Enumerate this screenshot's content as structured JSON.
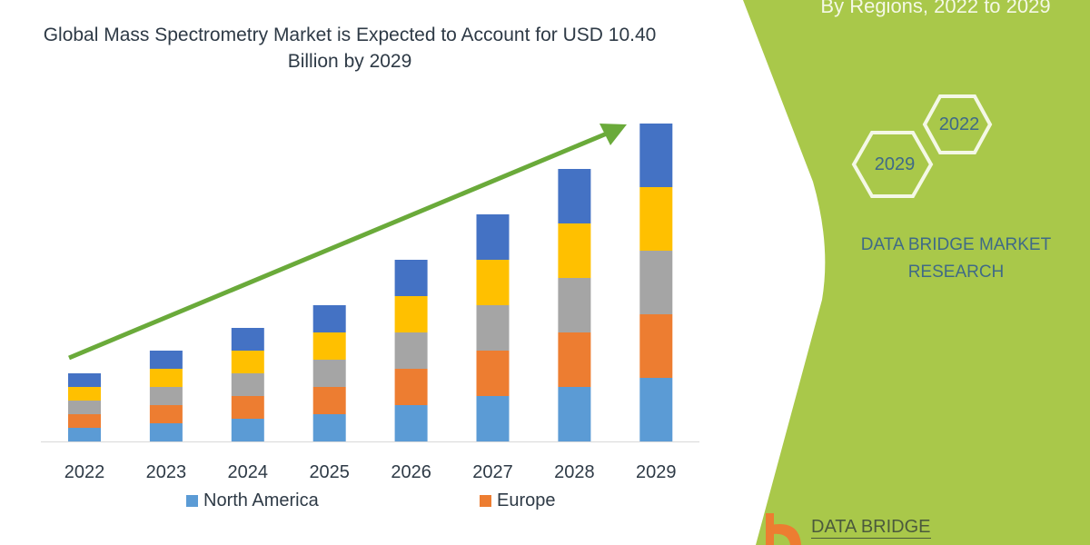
{
  "header": {
    "title": "Global Mass Spectrometry Market is Expected to Account for USD 10.40 Billion by 2029",
    "subtitle": "By Regions, 2022 to 2029"
  },
  "side_panel": {
    "hex_labels": [
      "2022",
      "2029"
    ],
    "brand": "DATA BRIDGE MARKET RESEARCH",
    "logo_text": "DATA BRIDGE",
    "color": "#a9c84a"
  },
  "chart_data": {
    "type": "bar",
    "stacked": true,
    "title": "Global Mass Spectrometry Market is Expected to Account for USD 10.40 Billion by 2029",
    "xlabel": "",
    "ylabel": "",
    "ylim": [
      0,
      35
    ],
    "grid": false,
    "y_axis_visible": false,
    "categories": [
      "2022",
      "2023",
      "2024",
      "2025",
      "2026",
      "2027",
      "2028",
      "2029"
    ],
    "series": [
      {
        "name": "North America",
        "color": "#5b9bd5",
        "values": [
          1.5,
          2,
          2.5,
          3,
          4,
          5,
          6,
          7
        ]
      },
      {
        "name": "Europe",
        "color": "#ed7d31",
        "values": [
          1.5,
          2,
          2.5,
          3,
          4,
          5,
          6,
          7
        ]
      },
      {
        "color": "#a5a5a5",
        "values": [
          1.5,
          2,
          2.5,
          3,
          4,
          5,
          6,
          7
        ]
      },
      {
        "color": "#ffc000",
        "values": [
          1.5,
          2,
          2.5,
          3,
          4,
          5,
          6,
          7
        ]
      },
      {
        "color": "#4472c4",
        "values": [
          1.5,
          2,
          2.5,
          3,
          4,
          5,
          6,
          7
        ]
      }
    ],
    "legend": {
      "placement": "bottom",
      "entries": [
        "North America",
        "Europe"
      ]
    },
    "trend_arrow": {
      "color": "#6aaa3a"
    }
  }
}
